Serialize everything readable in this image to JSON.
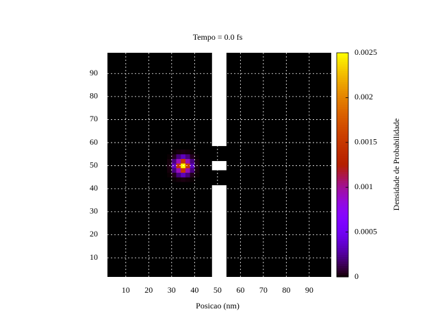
{
  "chart_data": {
    "type": "heatmap",
    "title": "Tempo = 0.0 fs",
    "x_label": "Posicao (nm)",
    "colorbar_label": "Densidade de Probabilidade",
    "x": [
      29,
      31,
      33,
      35,
      37,
      39,
      41
    ],
    "y": [
      44,
      46,
      48,
      50,
      52,
      54,
      56
    ],
    "cell_size": 2,
    "z": [
      [
        0,
        4e-06,
        1.7e-05,
        2.8e-05,
        1.7e-05,
        4e-06,
        0
      ],
      [
        4e-06,
        4.6e-05,
        0.000205,
        0.000338,
        0.000205,
        4.6e-05,
        4e-06
      ],
      [
        1.7e-05,
        0.000205,
        0.00092,
        0.00152,
        0.00092,
        0.000205,
        1.7e-05
      ],
      [
        2.8e-05,
        0.000338,
        0.00152,
        0.0025,
        0.00152,
        0.000338,
        2.8e-05
      ],
      [
        1.7e-05,
        0.000205,
        0.00092,
        0.00152,
        0.00092,
        0.000205,
        1.7e-05
      ],
      [
        4e-06,
        4.6e-05,
        0.000205,
        0.000338,
        0.000205,
        4.6e-05,
        4e-06
      ],
      [
        0,
        4e-06,
        1.7e-05,
        2.8e-05,
        1.7e-05,
        4e-06,
        0
      ]
    ],
    "walls": [
      {
        "x": [
          47.6,
          53.9
        ],
        "y": [
          58.5,
          99
        ]
      },
      {
        "x": [
          47.6,
          53.9
        ],
        "y": [
          48,
          52
        ]
      },
      {
        "x": [
          47.6,
          53.9
        ],
        "y": [
          1.7,
          41.5
        ]
      }
    ],
    "xlim": [
      2,
      99.6
    ],
    "ylim": [
      1.7,
      99
    ],
    "xticks": [
      10,
      20,
      30,
      40,
      50,
      60,
      70,
      80,
      90
    ],
    "yticks": [
      10,
      20,
      30,
      40,
      50,
      60,
      70,
      80,
      90
    ],
    "cblim": [
      0,
      0.0025
    ],
    "cbticks": [
      0,
      0.0005,
      0.001,
      0.0015,
      0.002,
      0.0025
    ],
    "palette": "gnuplot",
    "grid": true,
    "wall_color": "#ffffff"
  }
}
